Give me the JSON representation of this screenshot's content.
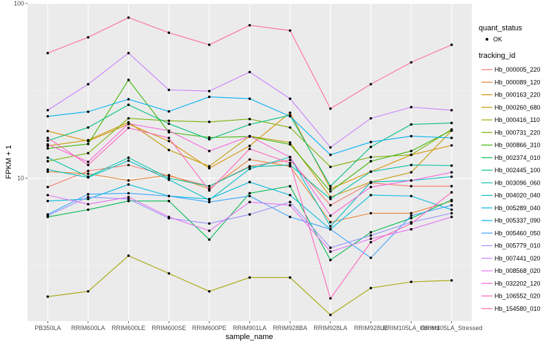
{
  "chart_data": {
    "type": "line",
    "xlabel": "sample_name",
    "ylabel": "FPKM + 1",
    "y_scale": "log10",
    "ylim": [
      1.52,
      100
    ],
    "yticks": [
      10,
      100
    ],
    "ytick_labels": [
      "10",
      "100"
    ],
    "grid": true,
    "legend_position": "right",
    "categories": [
      "PB350LA",
      "RRIM600LA",
      "RRIM600LE",
      "RRIM600SE",
      "RRIM600PE",
      "RRIM901LA",
      "RRIM928BA",
      "RRIM928LA",
      "RRIM928LE",
      "RRIM105LA_Control",
      "RRIM105LA_Stressed"
    ],
    "quant_status": {
      "title": "quant_status",
      "entries": [
        "OK"
      ]
    },
    "legend_title": "tracking_id",
    "series": [
      {
        "name": "Hb_000005_220",
        "color": "#F8766D",
        "values": [
          8.9,
          11.0,
          11.9,
          10.3,
          9.0,
          11.7,
          12.7,
          7.0,
          9.4,
          9.0,
          9.0
        ]
      },
      {
        "name": "Hb_000089_120",
        "color": "#EA8331",
        "values": [
          10.9,
          10.6,
          9.7,
          10.4,
          8.7,
          12.8,
          11.7,
          5.6,
          6.3,
          6.3,
          7.4
        ]
      },
      {
        "name": "Hb_000163_220",
        "color": "#D89000",
        "values": [
          18.6,
          16.3,
          20.4,
          16.3,
          11.4,
          15.3,
          23.7,
          8.7,
          10.9,
          13.6,
          15.4
        ]
      },
      {
        "name": "Hb_000260_680",
        "color": "#C09B00",
        "values": [
          15.3,
          16.5,
          20.9,
          14.5,
          11.7,
          17.4,
          16.0,
          7.8,
          9.5,
          10.8,
          18.7
        ]
      },
      {
        "name": "Hb_000416_110",
        "color": "#A3A500",
        "values": [
          2.1,
          2.25,
          3.6,
          2.85,
          2.25,
          2.7,
          2.7,
          1.65,
          2.35,
          2.55,
          2.6
        ]
      },
      {
        "name": "Hb_000731_220",
        "color": "#7CAE00",
        "values": [
          12.5,
          13.9,
          22.0,
          21.3,
          21.0,
          21.8,
          19.5,
          11.6,
          13.2,
          13.6,
          19.0
        ]
      },
      {
        "name": "Hb_000866_310",
        "color": "#39B600",
        "values": [
          14.8,
          15.7,
          36.5,
          18.3,
          17.1,
          17.3,
          15.6,
          8.4,
          12.5,
          14.3,
          18.8
        ]
      },
      {
        "name": "Hb_002374_010",
        "color": "#00BB4E",
        "values": [
          6.0,
          6.6,
          7.4,
          7.4,
          4.45,
          8.2,
          9.0,
          3.4,
          4.9,
          5.9,
          7.5
        ]
      },
      {
        "name": "Hb_002445_100",
        "color": "#00BF7D",
        "values": [
          16.4,
          19.5,
          26.3,
          20.5,
          16.7,
          20.3,
          22.9,
          9.0,
          15.1,
          20.3,
          20.7
        ]
      },
      {
        "name": "Hb_003096_060",
        "color": "#00C1A3",
        "values": [
          13.1,
          10.2,
          13.1,
          10.0,
          9.0,
          11.6,
          11.9,
          7.6,
          10.9,
          11.9,
          11.8
        ]
      },
      {
        "name": "Hb_004020_040",
        "color": "#00BFC4",
        "values": [
          11.2,
          10.1,
          12.6,
          9.8,
          7.5,
          11.3,
          13.2,
          5.3,
          9.5,
          9.7,
          10.2
        ]
      },
      {
        "name": "Hb_005289_040",
        "color": "#00BAE0",
        "values": [
          7.4,
          7.6,
          9.2,
          7.9,
          7.6,
          9.5,
          8.0,
          5.1,
          8.0,
          7.9,
          6.6
        ]
      },
      {
        "name": "Hb_005337_090",
        "color": "#00B0F6",
        "values": [
          22.6,
          24.0,
          28.3,
          24.1,
          29.2,
          28.5,
          22.6,
          13.6,
          16.1,
          17.4,
          17.0
        ]
      },
      {
        "name": "Hb_005460_050",
        "color": "#35A2FF",
        "values": [
          6.2,
          8.1,
          8.2,
          7.9,
          7.3,
          7.9,
          6.0,
          5.1,
          3.5,
          6.1,
          7.0
        ]
      },
      {
        "name": "Hb_005779_010",
        "color": "#9590FF",
        "values": [
          6.1,
          7.8,
          7.6,
          5.9,
          5.5,
          6.2,
          7.3,
          4.0,
          4.7,
          5.6,
          6.3
        ]
      },
      {
        "name": "Hb_007441_020",
        "color": "#C77CFF",
        "values": [
          24.5,
          34.5,
          52.0,
          32.0,
          31.5,
          40.5,
          28.5,
          15.0,
          22.0,
          25.5,
          24.5
        ]
      },
      {
        "name": "Hb_008568_020",
        "color": "#E76BF3",
        "values": [
          8.0,
          7.1,
          7.8,
          6.0,
          5.0,
          7.3,
          7.0,
          3.8,
          4.5,
          5.1,
          6.0
        ]
      },
      {
        "name": "Hb_032202_120",
        "color": "#FA62DB",
        "values": [
          15.6,
          12.4,
          20.5,
          18.7,
          14.3,
          17.4,
          13.2,
          6.1,
          8.9,
          9.7,
          10.8
        ]
      },
      {
        "name": "Hb_106552_020",
        "color": "#FF62BC",
        "values": [
          17.0,
          11.9,
          19.4,
          17.0,
          8.5,
          14.7,
          12.2,
          2.05,
          4.3,
          5.5,
          8.3
        ]
      },
      {
        "name": "Hb_154580_010",
        "color": "#FF6C91",
        "values": [
          52.0,
          64.0,
          83.0,
          68.0,
          58.0,
          75.0,
          70.0,
          25.0,
          34.5,
          46.0,
          58.0
        ]
      }
    ]
  }
}
